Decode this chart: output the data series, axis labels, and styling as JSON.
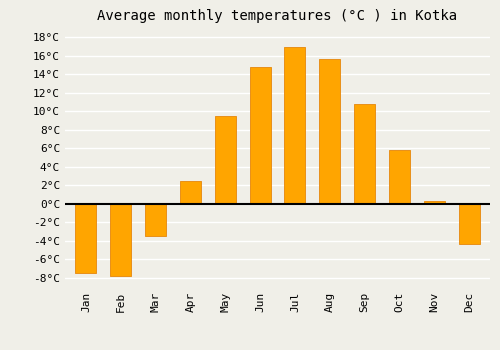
{
  "title": "Average monthly temperatures (°C ) in Kotka",
  "months": [
    "Jan",
    "Feb",
    "Mar",
    "Apr",
    "May",
    "Jun",
    "Jul",
    "Aug",
    "Sep",
    "Oct",
    "Nov",
    "Dec"
  ],
  "temperatures": [
    -7.5,
    -7.8,
    -3.5,
    2.5,
    9.5,
    14.8,
    17.0,
    15.7,
    10.8,
    5.8,
    0.3,
    -4.3
  ],
  "bar_color": "#FFA500",
  "bar_edge_color": "#E8901A",
  "ylim": [
    -9,
    19
  ],
  "yticks": [
    -8,
    -6,
    -4,
    -2,
    0,
    2,
    4,
    6,
    8,
    10,
    12,
    14,
    16,
    18
  ],
  "ytick_labels": [
    "-8°C",
    "-6°C",
    "-4°C",
    "-2°C",
    "0°C",
    "2°C",
    "4°C",
    "6°C",
    "8°C",
    "10°C",
    "12°C",
    "14°C",
    "16°C",
    "18°C"
  ],
  "background_color": "#f0efe8",
  "grid_color": "#ffffff",
  "title_fontsize": 10,
  "tick_fontsize": 8,
  "bar_width": 0.6
}
